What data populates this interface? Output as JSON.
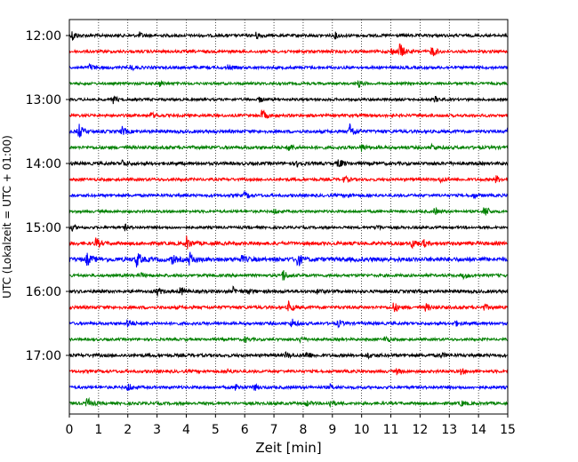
{
  "chart_data": {
    "type": "line",
    "xlabel": "Zeit  [min]",
    "ylabel": "UTC (Lokalzeit = UTC + 01:00)",
    "xlim": [
      0,
      15
    ],
    "x_ticks": [
      0,
      1,
      2,
      3,
      4,
      5,
      6,
      7,
      8,
      9,
      10,
      11,
      12,
      13,
      14,
      15
    ],
    "vertical_grid": "dotted",
    "trace_interval_minutes": 15,
    "traces_start": "12:00",
    "trace_count": 24,
    "y_tick_labels": [
      "12:00",
      "13:00",
      "14:00",
      "15:00",
      "16:00",
      "17:00"
    ],
    "y_tick_trace_index": [
      0,
      4,
      8,
      12,
      16,
      20
    ],
    "trace_colors": [
      "#000000",
      "#ff0000",
      "#0000ff",
      "#008000"
    ],
    "series": [
      {
        "start": "12:00",
        "noise": 1.0,
        "events": [
          [
            0.1,
            6
          ],
          [
            2.4,
            3
          ],
          [
            6.4,
            4
          ],
          [
            9.1,
            3
          ]
        ]
      },
      {
        "start": "12:15",
        "noise": 1.0,
        "events": [
          [
            11.3,
            10
          ],
          [
            12.4,
            7
          ],
          [
            11.0,
            4
          ]
        ]
      },
      {
        "start": "12:30",
        "noise": 1.0,
        "events": [
          [
            0.7,
            4
          ],
          [
            2.1,
            3
          ],
          [
            5.4,
            3
          ]
        ]
      },
      {
        "start": "12:45",
        "noise": 0.9,
        "events": [
          [
            9.9,
            4
          ],
          [
            3.1,
            3
          ]
        ]
      },
      {
        "start": "13:00",
        "noise": 0.9,
        "events": [
          [
            1.5,
            4
          ],
          [
            6.5,
            3
          ],
          [
            12.5,
            3
          ]
        ]
      },
      {
        "start": "13:15",
        "noise": 1.0,
        "events": [
          [
            6.6,
            7
          ],
          [
            2.8,
            3
          ]
        ]
      },
      {
        "start": "13:30",
        "noise": 1.1,
        "events": [
          [
            0.3,
            10
          ],
          [
            1.8,
            5
          ],
          [
            9.6,
            9
          ],
          [
            15.0,
            5
          ]
        ]
      },
      {
        "start": "13:45",
        "noise": 1.1,
        "events": [
          [
            7.5,
            5
          ],
          [
            10.0,
            4
          ],
          [
            12.4,
            3
          ]
        ]
      },
      {
        "start": "14:00",
        "noise": 1.1,
        "events": [
          [
            1.8,
            4
          ],
          [
            9.2,
            6
          ],
          [
            7.8,
            3
          ]
        ]
      },
      {
        "start": "14:15",
        "noise": 1.0,
        "events": [
          [
            9.4,
            4
          ],
          [
            12.7,
            3
          ],
          [
            14.6,
            4
          ]
        ]
      },
      {
        "start": "14:30",
        "noise": 1.0,
        "events": [
          [
            6.0,
            4
          ],
          [
            9.5,
            3
          ],
          [
            13.8,
            3
          ]
        ]
      },
      {
        "start": "14:45",
        "noise": 0.9,
        "events": [
          [
            7.0,
            3
          ],
          [
            12.5,
            4
          ],
          [
            14.2,
            8
          ]
        ]
      },
      {
        "start": "15:00",
        "noise": 0.9,
        "events": [
          [
            0.1,
            3
          ],
          [
            1.9,
            3
          ],
          [
            10.5,
            4
          ]
        ]
      },
      {
        "start": "15:15",
        "noise": 1.2,
        "events": [
          [
            0.9,
            6
          ],
          [
            4.0,
            8
          ],
          [
            11.7,
            6
          ],
          [
            12.1,
            4
          ]
        ]
      },
      {
        "start": "15:30",
        "noise": 1.5,
        "events": [
          [
            0.6,
            7
          ],
          [
            2.3,
            9
          ],
          [
            3.5,
            5
          ],
          [
            4.1,
            8
          ],
          [
            7.8,
            8
          ],
          [
            5.9,
            3
          ]
        ]
      },
      {
        "start": "15:45",
        "noise": 1.0,
        "events": [
          [
            7.3,
            7
          ],
          [
            2.4,
            3
          ],
          [
            13.5,
            3
          ]
        ]
      },
      {
        "start": "16:00",
        "noise": 1.1,
        "events": [
          [
            3.0,
            4
          ],
          [
            3.8,
            5
          ],
          [
            5.6,
            4
          ],
          [
            6.1,
            3
          ],
          [
            8.5,
            3
          ]
        ]
      },
      {
        "start": "16:15",
        "noise": 1.1,
        "events": [
          [
            7.5,
            6
          ],
          [
            11.1,
            6
          ],
          [
            12.2,
            4
          ],
          [
            14.2,
            3
          ]
        ]
      },
      {
        "start": "16:30",
        "noise": 1.0,
        "events": [
          [
            2.0,
            6
          ],
          [
            7.6,
            6
          ],
          [
            9.2,
            4
          ],
          [
            13.2,
            3
          ]
        ]
      },
      {
        "start": "16:45",
        "noise": 0.9,
        "events": [
          [
            10.8,
            4
          ],
          [
            7.9,
            3
          ],
          [
            6.0,
            3
          ]
        ]
      },
      {
        "start": "17:00",
        "noise": 1.1,
        "events": [
          [
            8.1,
            5
          ],
          [
            7.4,
            3
          ],
          [
            10.2,
            3
          ],
          [
            12.7,
            3
          ]
        ]
      },
      {
        "start": "17:15",
        "noise": 1.0,
        "events": [
          [
            5.4,
            3
          ],
          [
            11.2,
            3
          ],
          [
            13.4,
            3
          ]
        ]
      },
      {
        "start": "17:30",
        "noise": 1.0,
        "events": [
          [
            2.0,
            5
          ],
          [
            5.7,
            4
          ],
          [
            6.3,
            4
          ],
          [
            8.9,
            3
          ]
        ]
      },
      {
        "start": "17:45",
        "noise": 1.0,
        "events": [
          [
            0.6,
            7
          ],
          [
            8.9,
            4
          ],
          [
            8.1,
            3
          ],
          [
            13.4,
            3
          ]
        ]
      }
    ]
  }
}
